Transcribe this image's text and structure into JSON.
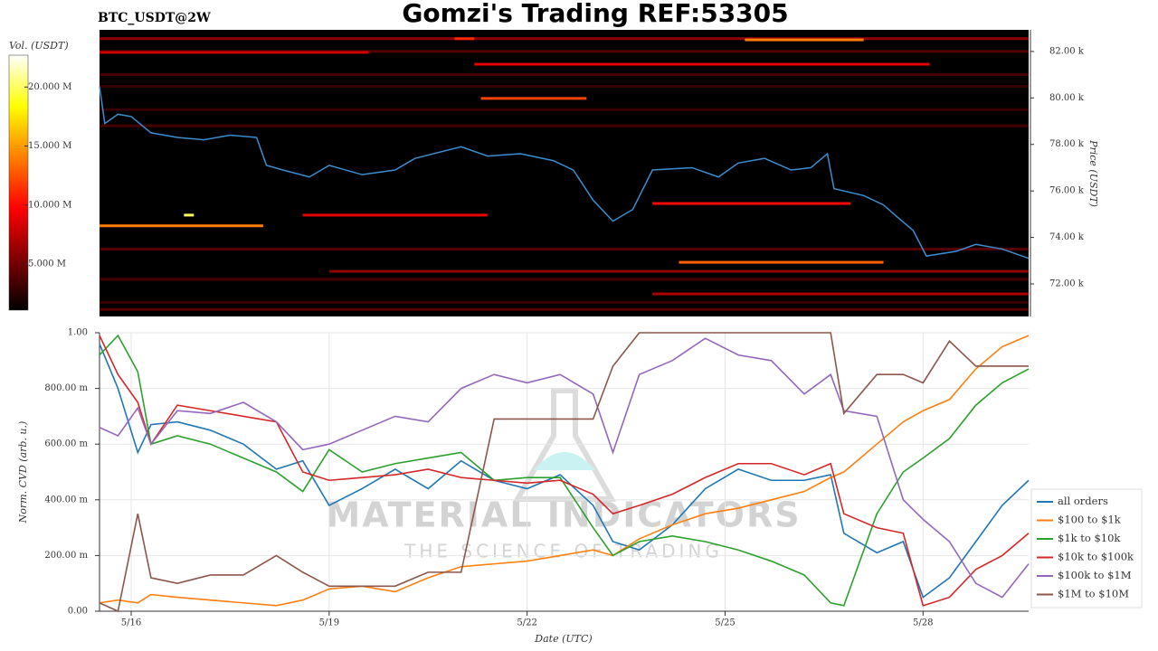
{
  "chart_data": [
    {
      "type": "heatmap",
      "title": "Gomzi's Trading REF:53305",
      "subtitle": "BTC_USDT@2W",
      "ylabel": "Price (USDT)",
      "colorbar_label": "Vol. (USDT)",
      "xlim": [
        15.52,
        29.6
      ],
      "ylim": [
        70600,
        82930
      ],
      "yticks": [
        {
          "value": 72000,
          "label": "72.00 k"
        },
        {
          "value": 74000,
          "label": "74.00 k"
        },
        {
          "value": 76000,
          "label": "76.00 k"
        },
        {
          "value": 78000,
          "label": "78.00 k"
        },
        {
          "value": 80000,
          "label": "80.00 k"
        },
        {
          "value": 82000,
          "label": "82.00 k"
        }
      ],
      "clim": [
        1100000,
        22700000
      ],
      "cticks": [
        {
          "value": 5000000,
          "label": "5.000 M"
        },
        {
          "value": 10000000,
          "label": "10.000 M"
        },
        {
          "value": 15000000,
          "label": "15.000 M"
        },
        {
          "value": 20000000,
          "label": "20.000 M"
        }
      ],
      "levels": {
        "price": [
          82550,
          82000,
          81960,
          82500,
          81450,
          81000,
          80500,
          79980,
          79500,
          78800,
          74960,
          74960,
          74500,
          75460,
          73500,
          72930,
          72540,
          72200,
          71570,
          71200,
          70900,
          82550
        ],
        "start": [
          15.52,
          15.52,
          15.52,
          25.3,
          21.2,
          15.52,
          15.52,
          21.3,
          15.52,
          15.52,
          16.8,
          18.6,
          15.52,
          23.9,
          15.52,
          24.3,
          19.0,
          15.52,
          23.9,
          15.52,
          15.52,
          20.9
        ],
        "end": [
          29.6,
          29.6,
          19.6,
          27.1,
          28.1,
          29.6,
          29.6,
          22.9,
          29.6,
          29.6,
          16.95,
          21.4,
          18.0,
          26.9,
          29.6,
          27.4,
          29.6,
          29.6,
          29.6,
          29.6,
          29.6,
          21.2
        ],
        "volume": [
          6000000,
          4000000,
          8000000,
          14000000,
          9000000,
          3500000,
          3000000,
          12000000,
          3000000,
          3500000,
          20000000,
          9000000,
          14000000,
          10000000,
          4000000,
          13000000,
          6000000,
          3500000,
          7000000,
          3000000,
          4000000,
          11000000
        ]
      },
      "price_series": {
        "name": "Price",
        "color": "#3b8ed0",
        "x": [
          15.52,
          15.6,
          15.8,
          16.0,
          16.3,
          16.7,
          17.1,
          17.5,
          17.9,
          18.05,
          18.3,
          18.7,
          19.0,
          19.5,
          20.0,
          20.3,
          21.0,
          21.4,
          21.9,
          22.4,
          22.7,
          23.0,
          23.3,
          23.6,
          23.9,
          24.5,
          24.9,
          25.2,
          25.6,
          26.0,
          26.3,
          26.55,
          26.65,
          27.1,
          27.4,
          27.6,
          27.85,
          28.05,
          28.5,
          28.8,
          29.2,
          29.6
        ],
        "values": [
          80500,
          78900,
          79300,
          79200,
          78500,
          78300,
          78200,
          78400,
          78300,
          77100,
          76900,
          76600,
          77100,
          76700,
          76900,
          77400,
          77900,
          77500,
          77600,
          77300,
          76900,
          75600,
          74700,
          75200,
          76900,
          77000,
          76600,
          77200,
          77400,
          76900,
          77000,
          77600,
          76100,
          75800,
          75400,
          74900,
          74300,
          73200,
          73400,
          73700,
          73500,
          73100
        ]
      }
    },
    {
      "type": "line",
      "xlabel": "Date (UTC)",
      "ylabel": "Norm. CVD (arb. u.)",
      "watermark": "MATERIAL INDICATORS",
      "watermark_subtitle": "THE SCIENCE OF TRADING",
      "grid": true,
      "legend": "lower right",
      "xlim": [
        15.52,
        29.6
      ],
      "ylim": [
        0,
        1
      ],
      "xticks": [
        {
          "value": 16,
          "label": "5/16"
        },
        {
          "value": 19,
          "label": "5/19"
        },
        {
          "value": 22,
          "label": "5/22"
        },
        {
          "value": 25,
          "label": "5/25"
        },
        {
          "value": 28,
          "label": "5/28"
        }
      ],
      "yticks": [
        {
          "value": 0,
          "label": "0.00"
        },
        {
          "value": 0.2,
          "label": "200.00 m"
        },
        {
          "value": 0.4,
          "label": "400.00 m"
        },
        {
          "value": 0.6,
          "label": "600.00 m"
        },
        {
          "value": 0.8,
          "label": "800.00 m"
        },
        {
          "value": 1,
          "label": "1.00"
        }
      ],
      "x": [
        15.52,
        15.8,
        16.1,
        16.3,
        16.7,
        17.2,
        17.7,
        18.2,
        18.6,
        19.0,
        19.5,
        20.0,
        20.5,
        21.0,
        21.5,
        22.0,
        22.5,
        23.0,
        23.3,
        23.7,
        24.2,
        24.7,
        25.2,
        25.7,
        26.2,
        26.6,
        26.8,
        27.3,
        27.7,
        28.0,
        28.4,
        28.8,
        29.2,
        29.6
      ],
      "series": [
        {
          "name": "all orders",
          "color": "#1f77b4",
          "values": [
            0.96,
            0.8,
            0.57,
            0.67,
            0.68,
            0.65,
            0.6,
            0.51,
            0.54,
            0.38,
            0.44,
            0.51,
            0.44,
            0.54,
            0.47,
            0.44,
            0.49,
            0.38,
            0.25,
            0.22,
            0.31,
            0.44,
            0.51,
            0.47,
            0.47,
            0.49,
            0.28,
            0.21,
            0.25,
            0.05,
            0.12,
            0.25,
            0.38,
            0.47
          ]
        },
        {
          "name": "$100 to $1k",
          "color": "#ff7f0e",
          "values": [
            0.03,
            0.04,
            0.03,
            0.06,
            0.05,
            0.04,
            0.03,
            0.02,
            0.04,
            0.08,
            0.09,
            0.07,
            0.12,
            0.16,
            0.17,
            0.18,
            0.2,
            0.22,
            0.2,
            0.26,
            0.31,
            0.35,
            0.37,
            0.4,
            0.43,
            0.48,
            0.5,
            0.6,
            0.68,
            0.72,
            0.76,
            0.87,
            0.95,
            0.99
          ]
        },
        {
          "name": "$1k to $10k",
          "color": "#2ca02c",
          "values": [
            0.92,
            0.99,
            0.86,
            0.6,
            0.63,
            0.6,
            0.55,
            0.5,
            0.43,
            0.58,
            0.5,
            0.53,
            0.55,
            0.57,
            0.47,
            0.48,
            0.48,
            0.3,
            0.2,
            0.25,
            0.27,
            0.25,
            0.22,
            0.18,
            0.13,
            0.03,
            0.02,
            0.35,
            0.5,
            0.55,
            0.62,
            0.74,
            0.82,
            0.87
          ]
        },
        {
          "name": "$10k to $100k",
          "color": "#d62728",
          "values": [
            0.99,
            0.85,
            0.75,
            0.6,
            0.74,
            0.72,
            0.7,
            0.68,
            0.5,
            0.47,
            0.48,
            0.49,
            0.51,
            0.48,
            0.47,
            0.46,
            0.47,
            0.42,
            0.35,
            0.38,
            0.42,
            0.48,
            0.53,
            0.53,
            0.49,
            0.53,
            0.35,
            0.3,
            0.28,
            0.02,
            0.05,
            0.15,
            0.2,
            0.28
          ]
        },
        {
          "name": "$100k to $1M",
          "color": "#9467bd",
          "values": [
            0.66,
            0.63,
            0.73,
            0.6,
            0.72,
            0.71,
            0.75,
            0.68,
            0.58,
            0.6,
            0.65,
            0.7,
            0.68,
            0.8,
            0.85,
            0.82,
            0.85,
            0.78,
            0.57,
            0.85,
            0.9,
            0.98,
            0.92,
            0.9,
            0.78,
            0.85,
            0.72,
            0.7,
            0.4,
            0.33,
            0.25,
            0.1,
            0.05,
            0.17
          ]
        },
        {
          "name": "$1M to $10M",
          "color": "#8c564b",
          "values": [
            0.03,
            0.0,
            0.35,
            0.12,
            0.1,
            0.13,
            0.13,
            0.2,
            0.14,
            0.09,
            0.09,
            0.09,
            0.14,
            0.14,
            0.69,
            0.69,
            0.69,
            0.69,
            0.88,
            1.0,
            1.0,
            1.0,
            1.0,
            1.0,
            1.0,
            1.0,
            0.71,
            0.85,
            0.85,
            0.82,
            0.97,
            0.88,
            0.88,
            0.88
          ]
        }
      ]
    }
  ]
}
